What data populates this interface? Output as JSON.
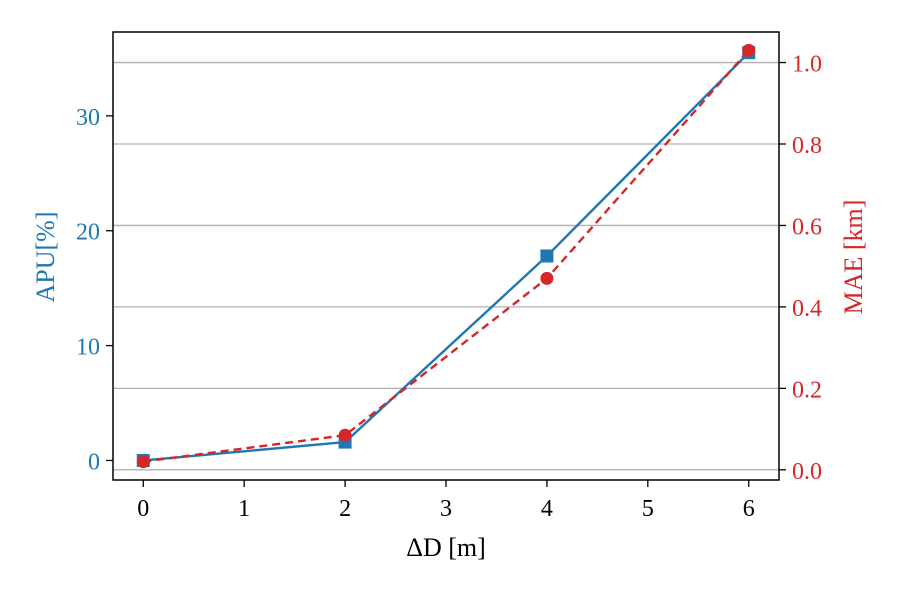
{
  "chart_data": {
    "type": "line",
    "title": "",
    "xlabel": "ΔD [m]",
    "ylabel_left": "APU[%]",
    "ylabel_right": "MAE [km]",
    "x_ticks": [
      "0",
      "1",
      "2",
      "3",
      "4",
      "5",
      "6"
    ],
    "y_left_ticks": [
      "0",
      "10",
      "20",
      "30"
    ],
    "y_right_ticks": [
      "0.0",
      "0.2",
      "0.4",
      "0.6",
      "0.8",
      "1.0"
    ],
    "xlim": [
      -0.3,
      6.3
    ],
    "y_left_lim": [
      -1.7,
      37.3
    ],
    "y_right_lim": [
      -0.025,
      1.075
    ],
    "grid": "horizontal (right axis)",
    "legend": "none",
    "series": [
      {
        "axis": "left",
        "color": "#1f77b4",
        "marker": "square",
        "linestyle": "solid",
        "x": [
          0,
          2,
          4,
          6
        ],
        "values": [
          0.0,
          1.6,
          17.8,
          35.5
        ]
      },
      {
        "axis": "right",
        "color": "#d62728",
        "marker": "circle",
        "linestyle": "dashed",
        "x": [
          0,
          2,
          4,
          6
        ],
        "values": [
          0.02,
          0.085,
          0.47,
          1.03
        ]
      }
    ],
    "colors": {
      "left_axis": "#1f77b4",
      "right_axis": "#d62728",
      "grid": "#b0b0b0"
    }
  }
}
